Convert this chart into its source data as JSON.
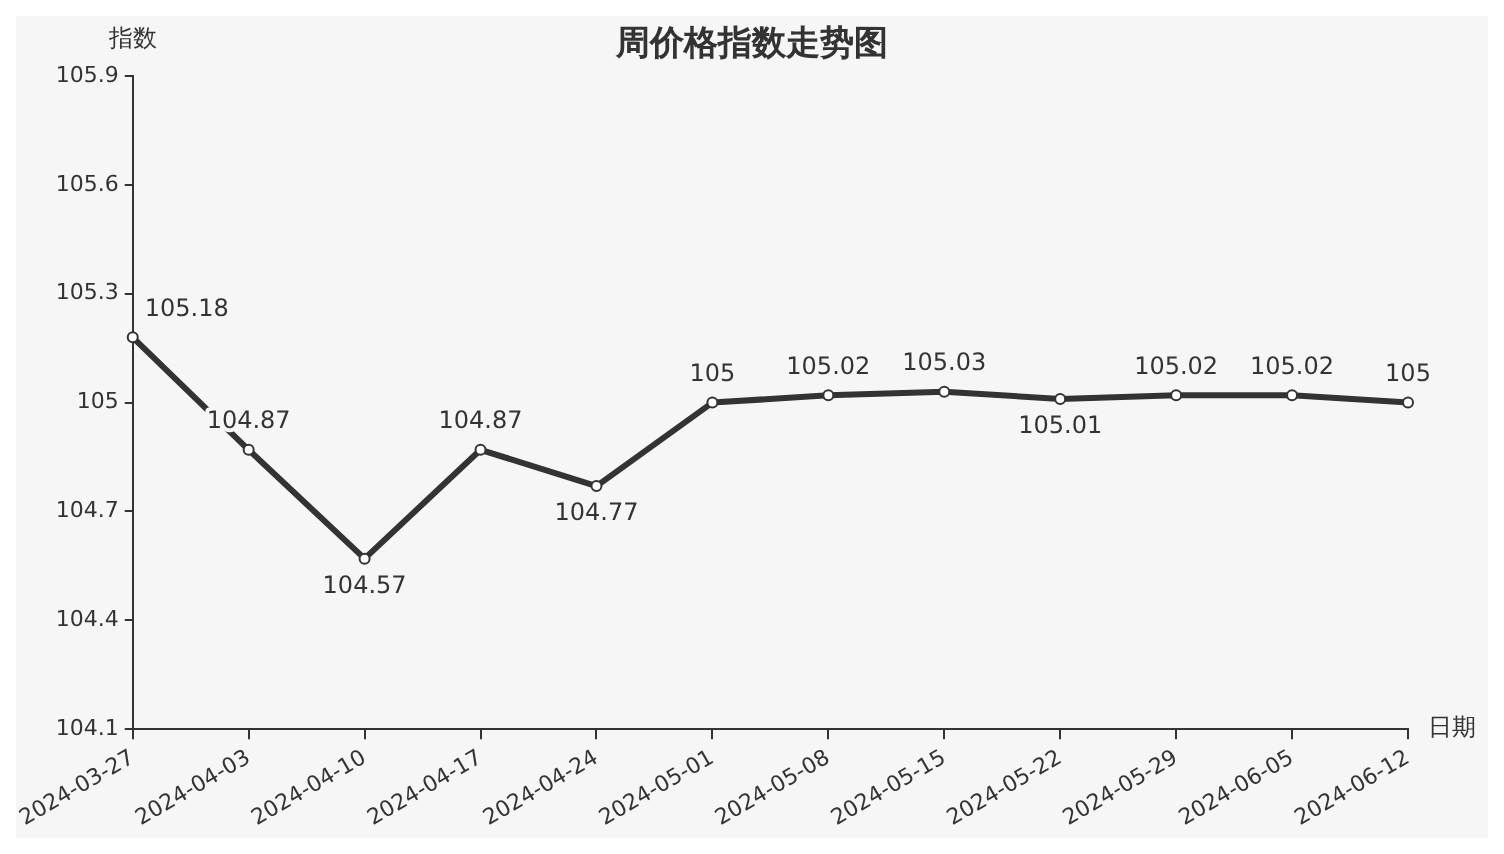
{
  "chart_data": {
    "type": "line",
    "title": "周价格指数走势图",
    "ylabel": "指数",
    "xlabel": "日期",
    "categories": [
      "2024-03-27",
      "2024-04-03",
      "2024-04-10",
      "2024-04-17",
      "2024-04-24",
      "2024-05-01",
      "2024-05-08",
      "2024-05-15",
      "2024-05-22",
      "2024-05-29",
      "2024-06-05",
      "2024-06-12"
    ],
    "series": [
      {
        "color": "#333333",
        "values": [
          105.18,
          104.87,
          104.57,
          104.87,
          104.77,
          105,
          105.02,
          105.03,
          105.01,
          105.02,
          105.02,
          105
        ]
      }
    ],
    "ylim": [
      104.1,
      105.9
    ],
    "yticks": [
      104.1,
      104.4,
      104.7,
      105,
      105.3,
      105.6,
      105.9
    ],
    "data_labels": true,
    "grid": false,
    "legend": false,
    "marker": "circle",
    "line_style": "solid"
  }
}
